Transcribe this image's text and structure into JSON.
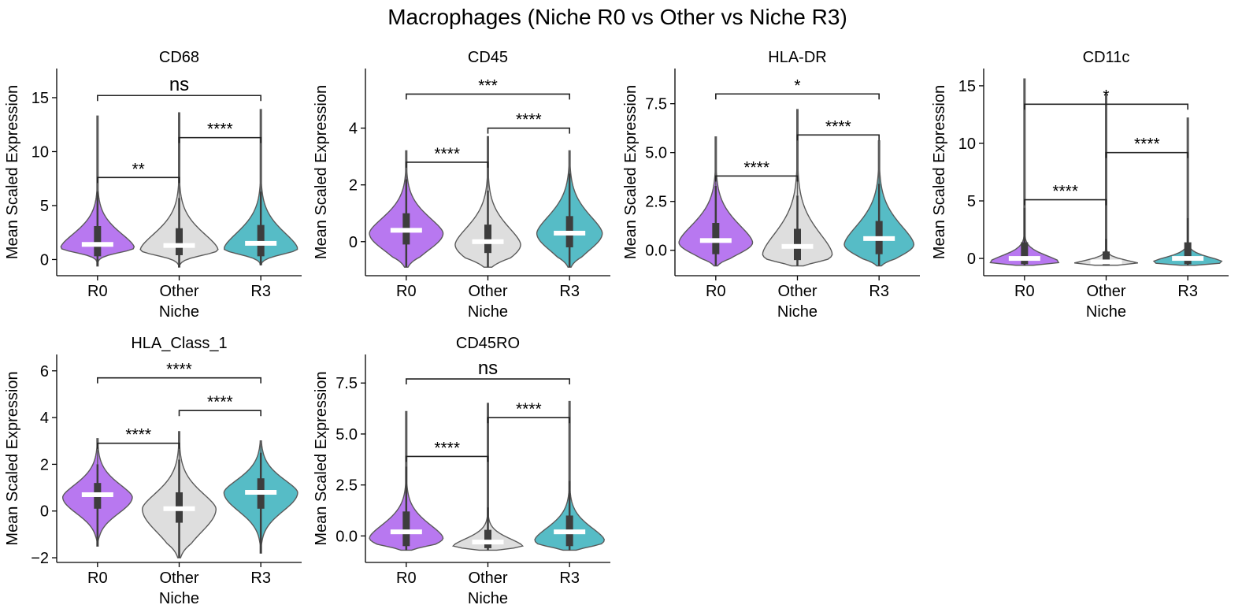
{
  "title": "Macrophages (Niche R0 vs Other vs Niche R3)",
  "colors": {
    "R0": "#b878f0",
    "Other": "#dedede",
    "R3": "#56bcc6"
  },
  "chart_data": [
    {
      "type": "violin",
      "title": "CD68",
      "xlabel": "Niche",
      "ylabel": "Mean Scaled Expression",
      "categories": [
        "R0",
        "Other",
        "R3"
      ],
      "ylim": [
        -1.5,
        17.7
      ],
      "yticks": [
        0,
        5,
        10,
        15
      ],
      "ytick_labels": [
        "0",
        "5",
        "10",
        "15"
      ],
      "violins": [
        {
          "category": "R0",
          "min": -0.6,
          "q1": 0.3,
          "median": 1.4,
          "q3": 3.1,
          "wmax": 6.3,
          "max": 13.3,
          "peak": 1.1,
          "width": 0.9,
          "fall": 0.45,
          "upper_decay": 2.2
        },
        {
          "category": "Other",
          "min": -0.7,
          "q1": 0.4,
          "median": 1.3,
          "q3": 2.9,
          "wmax": 5.7,
          "max": 13.6,
          "peak": 0.9,
          "width": 0.95,
          "fall": 0.5,
          "upper_decay": 2.5
        },
        {
          "category": "R3",
          "min": -0.5,
          "q1": 0.3,
          "median": 1.5,
          "q3": 3.2,
          "wmax": 6.3,
          "max": 13.9,
          "peak": 1.0,
          "width": 0.9,
          "fall": 0.5,
          "upper_decay": 2.5
        }
      ],
      "comparisons": [
        {
          "from": "R0",
          "to": "Other",
          "y": 7.6,
          "label": "**"
        },
        {
          "from": "Other",
          "to": "R3",
          "y": 11.3,
          "label": "****"
        },
        {
          "from": "R0",
          "to": "R3",
          "y": 15.2,
          "label": "ns"
        }
      ]
    },
    {
      "type": "violin",
      "title": "CD45",
      "xlabel": "Niche",
      "ylabel": "Mean Scaled Expression",
      "categories": [
        "R0",
        "Other",
        "R3"
      ],
      "ylim": [
        -1.2,
        6.1
      ],
      "yticks": [
        0,
        2,
        4
      ],
      "ytick_labels": [
        "0",
        "2",
        "4"
      ],
      "violins": [
        {
          "category": "R0",
          "min": -0.9,
          "q1": -0.1,
          "median": 0.4,
          "q3": 1.0,
          "wmax": 2.2,
          "max": 3.2,
          "peak": 0.3,
          "width": 0.9,
          "fall": 0.6,
          "upper_decay": 0.9
        },
        {
          "category": "Other",
          "min": -0.9,
          "q1": -0.4,
          "median": 0.0,
          "q3": 0.6,
          "wmax": 1.8,
          "max": 3.7,
          "peak": -0.1,
          "width": 0.8,
          "fall": 0.55,
          "upper_decay": 1.0
        },
        {
          "category": "R3",
          "min": -0.9,
          "q1": -0.2,
          "median": 0.3,
          "q3": 0.9,
          "wmax": 2.4,
          "max": 3.2,
          "peak": 0.3,
          "width": 0.8,
          "fall": 0.6,
          "upper_decay": 1.0
        }
      ],
      "comparisons": [
        {
          "from": "R0",
          "to": "Other",
          "y": 2.8,
          "label": "****"
        },
        {
          "from": "Other",
          "to": "R3",
          "y": 4.0,
          "label": "****"
        },
        {
          "from": "R0",
          "to": "R3",
          "y": 5.2,
          "label": "***"
        }
      ]
    },
    {
      "type": "violin",
      "title": "HLA-DR",
      "xlabel": "Niche",
      "ylabel": "Mean Scaled Expression",
      "categories": [
        "R0",
        "Other",
        "R3"
      ],
      "ylim": [
        -1.3,
        9.3
      ],
      "yticks": [
        0,
        2.5,
        5,
        7.5
      ],
      "ytick_labels": [
        "0.0",
        "2.5",
        "5.0",
        "7.5"
      ],
      "violins": [
        {
          "category": "R0",
          "min": -0.8,
          "q1": -0.2,
          "median": 0.5,
          "q3": 1.4,
          "wmax": 3.3,
          "max": 5.8,
          "peak": 0.4,
          "width": 0.9,
          "fall": 0.6,
          "upper_decay": 1.5
        },
        {
          "category": "Other",
          "min": -0.8,
          "q1": -0.5,
          "median": 0.2,
          "q3": 1.1,
          "wmax": 2.8,
          "max": 7.2,
          "peak": -0.2,
          "width": 0.85,
          "fall": 0.5,
          "upper_decay": 1.8
        },
        {
          "category": "R3",
          "min": -0.8,
          "q1": -0.2,
          "median": 0.6,
          "q3": 1.5,
          "wmax": 3.4,
          "max": 5.6,
          "peak": 0.3,
          "width": 0.85,
          "fall": 0.6,
          "upper_decay": 1.6
        }
      ],
      "comparisons": [
        {
          "from": "R0",
          "to": "Other",
          "y": 3.8,
          "label": "****"
        },
        {
          "from": "Other",
          "to": "R3",
          "y": 5.9,
          "label": "****"
        },
        {
          "from": "R0",
          "to": "R3",
          "y": 8.0,
          "label": "*"
        }
      ]
    },
    {
      "type": "violin",
      "title": "CD11c",
      "xlabel": "Niche",
      "ylabel": "Mean Scaled Expression",
      "categories": [
        "R0",
        "Other",
        "R3"
      ],
      "ylim": [
        -1.5,
        16.5
      ],
      "yticks": [
        0,
        5,
        10,
        15
      ],
      "ytick_labels": [
        "0",
        "5",
        "10",
        "15"
      ],
      "violins": [
        {
          "category": "R0",
          "min": -0.6,
          "q1": -0.5,
          "median": 0.0,
          "q3": 1.4,
          "wmax": 4.4,
          "max": 15.6,
          "peak": -0.3,
          "width": 0.85,
          "fall": 0.35,
          "upper_decay": 0.9
        },
        {
          "category": "Other",
          "min": -0.6,
          "q1": -0.6,
          "median": -0.3,
          "q3": 0.6,
          "wmax": 1.7,
          "max": 14.2,
          "peak": -0.5,
          "width": 0.85,
          "fall": 0.22,
          "upper_decay": 0.5
        },
        {
          "category": "R3",
          "min": -0.6,
          "q1": -0.5,
          "median": 0.0,
          "q3": 1.4,
          "wmax": 3.5,
          "max": 12.2,
          "peak": -0.3,
          "width": 0.85,
          "fall": 0.28,
          "upper_decay": 0.65
        }
      ],
      "comparisons": [
        {
          "from": "R0",
          "to": "Other",
          "y": 5.1,
          "label": "****"
        },
        {
          "from": "Other",
          "to": "R3",
          "y": 9.2,
          "label": "****"
        },
        {
          "from": "R0",
          "to": "R3",
          "y": 13.4,
          "label": "*"
        }
      ]
    },
    {
      "type": "violin",
      "title": "HLA_Class_1",
      "xlabel": "Niche",
      "ylabel": "Mean Scaled Expression",
      "categories": [
        "R0",
        "Other",
        "R3"
      ],
      "ylim": [
        -2.2,
        6.7
      ],
      "yticks": [
        -2,
        0,
        2,
        4,
        6
      ],
      "ytick_labels": [
        "−2",
        "0",
        "2",
        "4",
        "6"
      ],
      "violins": [
        {
          "category": "R0",
          "min": -1.5,
          "q1": 0.1,
          "median": 0.7,
          "q3": 1.2,
          "wmax": 2.0,
          "max": 3.1,
          "peak": 0.6,
          "width": 0.85,
          "fall": 0.7,
          "upper_decay": 0.9
        },
        {
          "category": "Other",
          "min": -2.0,
          "q1": -0.5,
          "median": 0.1,
          "q3": 0.8,
          "wmax": 2.2,
          "max": 3.4,
          "peak": 0.1,
          "width": 0.9,
          "fall": 1.0,
          "upper_decay": 1.1
        },
        {
          "category": "R3",
          "min": -1.8,
          "q1": 0.1,
          "median": 0.8,
          "q3": 1.4,
          "wmax": 2.5,
          "max": 3.0,
          "peak": 0.8,
          "width": 0.9,
          "fall": 0.8,
          "upper_decay": 0.9
        }
      ],
      "comparisons": [
        {
          "from": "R0",
          "to": "Other",
          "y": 2.9,
          "label": "****"
        },
        {
          "from": "Other",
          "to": "R3",
          "y": 4.3,
          "label": "****"
        },
        {
          "from": "R0",
          "to": "R3",
          "y": 5.7,
          "label": "****"
        }
      ]
    },
    {
      "type": "violin",
      "title": "CD45RO",
      "xlabel": "Niche",
      "ylabel": "Mean Scaled Expression",
      "categories": [
        "R0",
        "Other",
        "R3"
      ],
      "ylim": [
        -1.3,
        8.9
      ],
      "yticks": [
        0,
        2.5,
        5,
        7.5
      ],
      "ytick_labels": [
        "0.0",
        "2.5",
        "5.0",
        "7.5"
      ],
      "violins": [
        {
          "category": "R0",
          "min": -0.7,
          "q1": -0.5,
          "median": 0.2,
          "q3": 1.2,
          "wmax": 3.4,
          "max": 6.1,
          "peak": -0.1,
          "width": 0.9,
          "fall": 0.45,
          "upper_decay": 1.1
        },
        {
          "category": "Other",
          "min": -0.7,
          "q1": -0.6,
          "median": -0.3,
          "q3": 0.3,
          "wmax": 1.4,
          "max": 6.5,
          "peak": -0.5,
          "width": 0.85,
          "fall": 0.25,
          "upper_decay": 0.6
        },
        {
          "category": "R3",
          "min": -0.7,
          "q1": -0.5,
          "median": 0.2,
          "q3": 1.0,
          "wmax": 2.7,
          "max": 6.6,
          "peak": -0.2,
          "width": 0.85,
          "fall": 0.45,
          "upper_decay": 1.0
        }
      ],
      "comparisons": [
        {
          "from": "R0",
          "to": "Other",
          "y": 3.9,
          "label": "****"
        },
        {
          "from": "Other",
          "to": "R3",
          "y": 5.8,
          "label": "****"
        },
        {
          "from": "R0",
          "to": "R3",
          "y": 7.7,
          "label": "ns"
        }
      ]
    }
  ]
}
